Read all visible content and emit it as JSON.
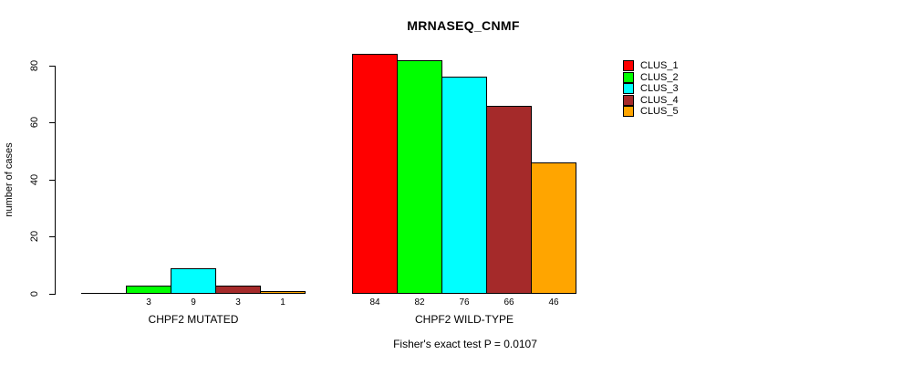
{
  "chart_data": {
    "type": "bar",
    "title": "MRNASEQ_CNMF",
    "ylabel": "number of cases",
    "xlabel": "",
    "ylim": [
      0,
      80
    ],
    "yticks": [
      0,
      20,
      40,
      60,
      80
    ],
    "grid": false,
    "legend_position": "right-outside",
    "categories": [
      "CHPF2 MUTATED",
      "CHPF2 WILD-TYPE"
    ],
    "series": [
      {
        "name": "CLUS_1",
        "color": "#FF0000",
        "values": [
          0,
          84
        ]
      },
      {
        "name": "CLUS_2",
        "color": "#00FF00",
        "values": [
          3,
          82
        ]
      },
      {
        "name": "CLUS_3",
        "color": "#00FFFF",
        "values": [
          9,
          76
        ]
      },
      {
        "name": "CLUS_4",
        "color": "#A52A2A",
        "values": [
          3,
          66
        ]
      },
      {
        "name": "CLUS_5",
        "color": "#FFA500",
        "values": [
          1,
          46
        ]
      }
    ],
    "bar_value_labels_shown": true,
    "annotation": "Fisher's exact test P = 0.0107"
  },
  "colors": {
    "background": "#FFFFFF",
    "axis": "#000000",
    "text": "#000000"
  }
}
